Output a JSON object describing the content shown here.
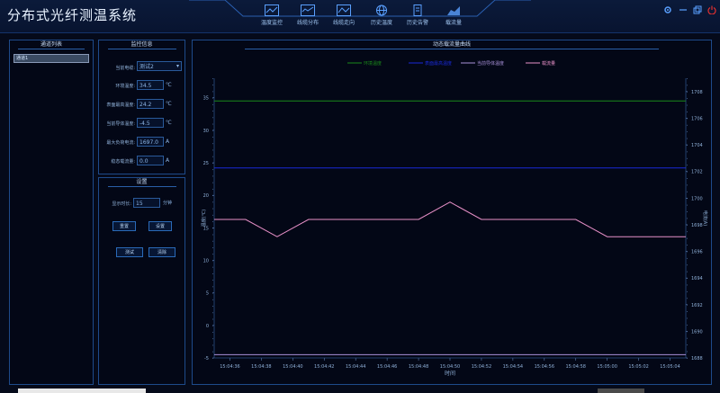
{
  "app": {
    "title": "分布式光纤测温系统"
  },
  "nav": [
    {
      "label": "温度监控"
    },
    {
      "label": "线缆分布"
    },
    {
      "label": "线缆走向"
    },
    {
      "label": "历史温度"
    },
    {
      "label": "历史告警"
    },
    {
      "label": "载流量"
    }
  ],
  "channel_panel": {
    "title": "通道列表",
    "items": [
      "通道1"
    ]
  },
  "monitor_panel": {
    "title": "监控信息",
    "cable_label": "当前电缆:",
    "cable_value": "测试2",
    "env_label": "环境温度:",
    "env_value": "34.5",
    "env_unit": "℃",
    "surface_label": "表面最高温度:",
    "surface_value": "24.2",
    "surface_unit": "℃",
    "conductor_label": "当前导体温度:",
    "conductor_value": "-4.5",
    "conductor_unit": "℃",
    "maxload_label": "最大负荷电流:",
    "maxload_value": "1697.0",
    "maxload_unit": "A",
    "steady_label": "稳态载流量:",
    "steady_value": "0.0",
    "steady_unit": "A"
  },
  "settings_panel": {
    "title": "设置",
    "interval_label": "显示时长:",
    "interval_value": "15",
    "interval_unit": "分钟",
    "reset_label": "重置",
    "set_label": "设置",
    "test_label": "测试",
    "clear_label": "清除"
  },
  "chart_panel": {
    "title": "动态载流量曲线"
  },
  "colors": {
    "env": "#1a8a1a",
    "surface": "#1a2ad8",
    "conductor": "#a890d8",
    "current": "#e890c8"
  },
  "chart_data": {
    "type": "line",
    "title": "",
    "xlabel": "时间",
    "ylabel_left": "温度(℃)",
    "ylabel_right": "电流(A)",
    "ylim_left": [
      -5,
      38
    ],
    "ylim_right": [
      1688,
      1709
    ],
    "left_ticks": [
      35,
      30,
      25,
      20,
      15,
      10,
      5,
      0,
      -5
    ],
    "right_ticks": [
      1708,
      1706,
      1704,
      1702,
      1700,
      1698,
      1696,
      1694,
      1692,
      1690,
      1688
    ],
    "categories": [
      "15:04:36",
      "15:04:38",
      "15:04:40",
      "15:04:42",
      "15:04:44",
      "15:04:46",
      "15:04:48",
      "15:04:50",
      "15:04:52",
      "15:04:54",
      "15:04:56",
      "15:04:58",
      "15:05:00",
      "15:05:02",
      "15:05:04"
    ],
    "series": [
      {
        "name": "环境温度",
        "axis": "left",
        "x": [
          "15:04:35",
          "15:05:05"
        ],
        "values": [
          34.5,
          34.5
        ]
      },
      {
        "name": "表面最高温度",
        "axis": "left",
        "x": [
          "15:04:35",
          "15:05:05"
        ],
        "values": [
          24.2,
          24.2
        ]
      },
      {
        "name": "当前导体温度",
        "axis": "left",
        "x": [
          "15:04:35",
          "15:05:05"
        ],
        "values": [
          -4.5,
          -4.5
        ]
      },
      {
        "name": "载流量",
        "axis": "right",
        "x": [
          "15:04:35",
          "15:04:37",
          "15:04:39",
          "15:04:41",
          "15:04:48",
          "15:04:50",
          "15:04:52",
          "15:04:58",
          "15:05:00",
          "15:05:05"
        ],
        "values": [
          1698.4,
          1698.4,
          1697.1,
          1698.4,
          1698.4,
          1699.7,
          1698.4,
          1698.4,
          1697.1,
          1697.1
        ]
      }
    ]
  }
}
